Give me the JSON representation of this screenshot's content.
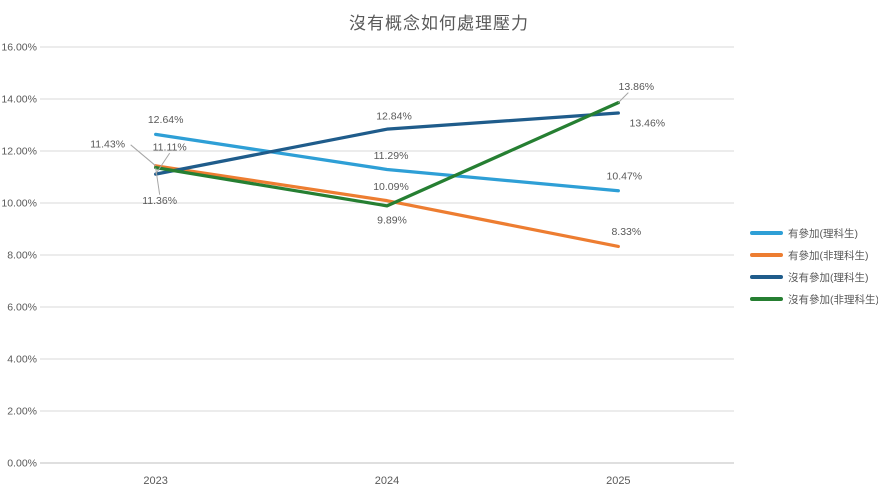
{
  "chart_data": {
    "type": "line",
    "title": "沒有概念如何處理壓力",
    "categories": [
      "2023",
      "2024",
      "2025"
    ],
    "series": [
      {
        "name": "有參加(理科生)",
        "color": "#2E9FD6",
        "values": [
          12.64,
          11.29,
          10.47
        ],
        "value_labels": [
          "12.64%",
          "11.29%",
          "10.47%"
        ],
        "label_placement": [
          {
            "dx": 10,
            "dy": -15
          },
          {
            "dx": 4,
            "dy": -14
          },
          {
            "dx": 6,
            "dy": -15
          }
        ]
      },
      {
        "name": "有參加(非理科生)",
        "color": "#ED7D31",
        "values": [
          11.43,
          10.09,
          8.33
        ],
        "value_labels": [
          "11.43%",
          "10.09%",
          "8.33%"
        ],
        "label_placement": [
          {
            "dx": -48,
            "dy": -22,
            "leader": [
              -25,
              -21
            ]
          },
          {
            "dx": 4,
            "dy": -14
          },
          {
            "dx": 8,
            "dy": -15
          }
        ]
      },
      {
        "name": "沒有參加(理科生)",
        "color": "#1F5C8B",
        "values": [
          11.11,
          12.84,
          13.46
        ],
        "value_labels": [
          "11.11%",
          "12.84%",
          "13.46%"
        ],
        "label_placement": [
          {
            "dx": 14,
            "dy": -27,
            "leader": [
              14,
              -21
            ]
          },
          {
            "dx": 7,
            "dy": -13
          },
          {
            "dx": 29,
            "dy": 10
          }
        ]
      },
      {
        "name": "沒有參加(非理科生)",
        "color": "#267F32",
        "values": [
          11.36,
          9.89,
          13.86
        ],
        "value_labels": [
          "11.36%",
          "9.89%",
          "13.86%"
        ],
        "label_placement": [
          {
            "dx": 4,
            "dy": 33,
            "leader": [
              4,
              27
            ]
          },
          {
            "dx": 5,
            "dy": 14
          },
          {
            "dx": 18,
            "dy": -16,
            "leader": [
              10,
              -10
            ]
          }
        ]
      }
    ],
    "y_axis": {
      "min": 0,
      "max": 16,
      "step": 2,
      "tick_labels": [
        "0.00%",
        "2.00%",
        "4.00%",
        "6.00%",
        "8.00%",
        "10.00%",
        "12.00%",
        "14.00%",
        "16.00%"
      ]
    },
    "x_axis": {
      "tick_labels": [
        "2023",
        "2024",
        "2025"
      ]
    },
    "grid": true,
    "legend_position": "right",
    "style": {
      "axis_text_color": "#595959",
      "data_label_color": "#595959",
      "gridline_color": "#D9D9D9",
      "axis_line_color": "#BFBFBF",
      "leader_line_color": "#A6A6A6",
      "background": "#FFFFFF"
    }
  }
}
